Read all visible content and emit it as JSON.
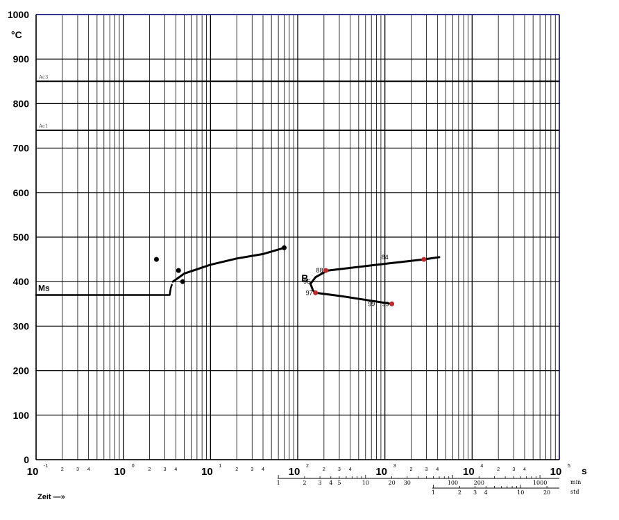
{
  "chart_data": {
    "type": "line",
    "title": "",
    "y_unit": "°C",
    "x_unit": "s",
    "x_scale": "log",
    "xlim_exp": [
      -1,
      5
    ],
    "ylim": [
      0,
      1000
    ],
    "y_ticks": [
      0,
      100,
      200,
      300,
      400,
      500,
      600,
      700,
      800,
      900,
      1000
    ],
    "x_tick_base": "10",
    "x_tick_exps": [
      "-1",
      "0",
      "1",
      "2",
      "3",
      "4",
      "5"
    ],
    "minor_tick_labels": [
      "2",
      "3",
      "4"
    ],
    "grid": true,
    "reference_lines": [
      {
        "name": "Ac3",
        "y": 850
      },
      {
        "name": "Ac1",
        "y": 740
      }
    ],
    "ms_line": {
      "label": "Ms",
      "points": [
        [
          0.1,
          370
        ],
        [
          3.4,
          370
        ],
        [
          3.5,
          385
        ],
        [
          3.6,
          393
        ]
      ]
    },
    "bainite_start_curve": {
      "points": [
        [
          3.7,
          400
        ],
        [
          5,
          418
        ],
        [
          10,
          438
        ],
        [
          20,
          452
        ],
        [
          40,
          462
        ],
        [
          70,
          476
        ]
      ]
    },
    "isolated_points": [
      {
        "x": 2.4,
        "y": 450
      },
      {
        "x": 4.3,
        "y": 425
      },
      {
        "x": 4.8,
        "y": 400
      },
      {
        "x": 70,
        "y": 476
      }
    ],
    "phase_label": {
      "text": "B",
      "x": 110,
      "y": 400
    },
    "hardness_curve": {
      "points": [
        [
          4200,
          455
        ],
        [
          2800,
          450
        ],
        [
          1000,
          440
        ],
        [
          220,
          425
        ],
        [
          160,
          410
        ],
        [
          140,
          395
        ],
        [
          150,
          380
        ],
        [
          160,
          375
        ],
        [
          300,
          368
        ],
        [
          1200,
          350
        ]
      ],
      "labeled_points": [
        {
          "label": "88",
          "x": 210,
          "y": 425,
          "red": true
        },
        {
          "label": "84",
          "x": 2800,
          "y": 450,
          "red": true
        },
        {
          "label": "96",
          "x": 150,
          "y": 400,
          "red": false
        },
        {
          "label": "97",
          "x": 160,
          "y": 375,
          "red": true
        },
        {
          "label": "99",
          "x": 1200,
          "y": 350,
          "red": true
        }
      ],
      "text_labels": [
        {
          "label": "84",
          "x": 1000,
          "y": 450
        },
        {
          "label": "99",
          "x": 700,
          "y": 345
        }
      ]
    },
    "secondary_axes": {
      "min": {
        "label": "min",
        "ticks": [
          "1",
          "2",
          "3",
          "4",
          "5",
          "10",
          "20",
          "30",
          "100",
          "200",
          "1000"
        ]
      },
      "std": {
        "label": "std",
        "ticks": [
          "1",
          "2",
          "3",
          "4",
          "10",
          "20"
        ]
      }
    },
    "x_axis_title": "Zeit —»"
  },
  "colors": {
    "grid": "#000000",
    "curve": "#000000",
    "marker_red": "#c0282a",
    "frame_top": "#333399"
  }
}
